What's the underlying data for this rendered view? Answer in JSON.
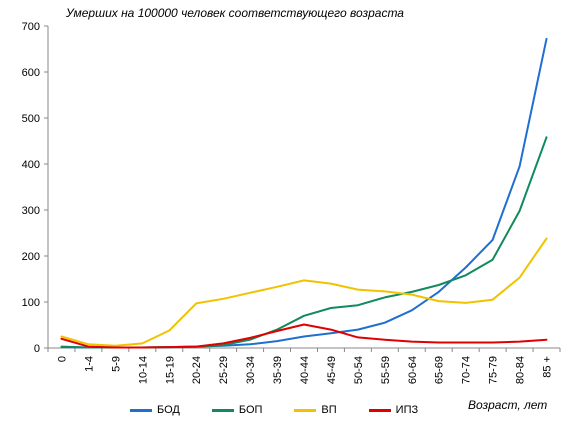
{
  "chart_data": {
    "type": "line",
    "title": "Умерших на 100000 человек соответствующего возраста",
    "xlabel": "Возраст, лет",
    "ylabel": "",
    "ylim": [
      0,
      700
    ],
    "yticks": [
      0,
      100,
      200,
      300,
      400,
      500,
      600,
      700
    ],
    "grid": "none",
    "legend_position": "bottom",
    "categories": [
      "0",
      "1-4",
      "5-9",
      "10-14",
      "15-19",
      "20-24",
      "25-29",
      "30-34",
      "35-39",
      "40-44",
      "45-49",
      "50-54",
      "55-59",
      "60-64",
      "65-69",
      "70-74",
      "75-79",
      "80-84",
      "85 +"
    ],
    "series": [
      {
        "name": "БОД",
        "color": "#1f6fd1",
        "values": [
          2,
          1,
          1,
          1,
          2,
          3,
          5,
          8,
          15,
          25,
          32,
          40,
          55,
          82,
          122,
          175,
          235,
          395,
          672
        ]
      },
      {
        "name": "БОП",
        "color": "#118a5c",
        "values": [
          3,
          1,
          1,
          1,
          2,
          3,
          6,
          18,
          40,
          70,
          87,
          93,
          110,
          122,
          137,
          158,
          192,
          298,
          458
        ]
      },
      {
        "name": "ВП",
        "color": "#f2c200",
        "values": [
          25,
          8,
          5,
          10,
          38,
          97,
          107,
          120,
          133,
          147,
          140,
          127,
          123,
          116,
          102,
          98,
          105,
          153,
          238
        ]
      },
      {
        "name": "ИПЗ",
        "color": "#e00000",
        "values": [
          20,
          3,
          1,
          1,
          2,
          3,
          10,
          22,
          37,
          51,
          40,
          23,
          18,
          14,
          12,
          12,
          12,
          14,
          18
        ]
      }
    ]
  }
}
